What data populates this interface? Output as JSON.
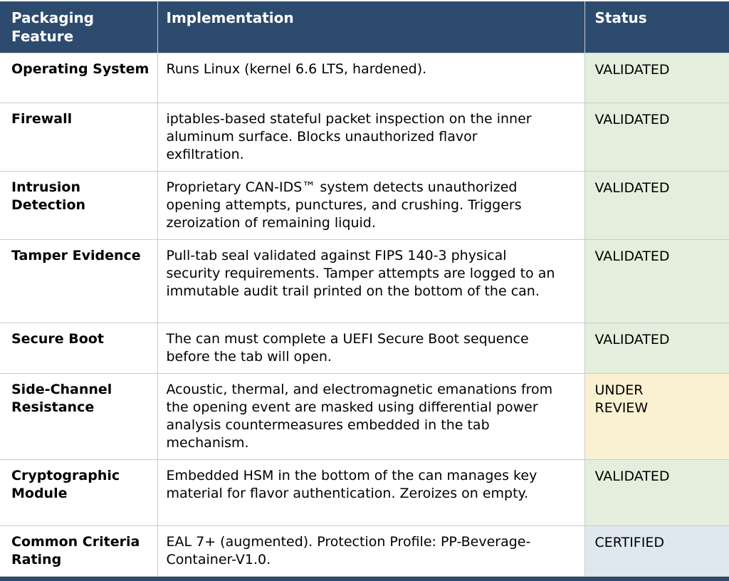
{
  "colors": {
    "header_bg": "#2d4b6f",
    "header_text": "#ffffff",
    "body_text": "#000000",
    "border": "#cbcbcb",
    "validated_bg": "#e3efdc",
    "under_review_bg": "#faf0d2",
    "certified_bg": "#e0e8ef",
    "bottom_bar": "#2d4b6f"
  },
  "table": {
    "columns": [
      "Packaging Feature",
      "Implementation",
      "Status"
    ],
    "rows": [
      {
        "feature": "Operating System",
        "implementation": "Runs Linux (kernel 6.6 LTS, hardened).",
        "status": "VALIDATED",
        "status_key": "validated"
      },
      {
        "feature": "Firewall",
        "implementation": "iptables-based stateful packet inspection on the inner aluminum surface. Blocks unauthorized flavor exfiltration.",
        "status": "VALIDATED",
        "status_key": "validated"
      },
      {
        "feature": "Intrusion Detection",
        "implementation": "Proprietary CAN-IDS™ system detects unauthorized opening attempts, punctures, and crushing. Triggers zeroization of remaining liquid.",
        "status": "VALIDATED",
        "status_key": "validated"
      },
      {
        "feature": "Tamper Evidence",
        "implementation": "Pull-tab seal validated against FIPS 140-3 physical security requirements. Tamper attempts are logged to an immutable audit trail printed on the bottom of the can.",
        "status": "VALIDATED",
        "status_key": "validated"
      },
      {
        "feature": "Secure Boot",
        "implementation": "The can must complete a UEFI Secure Boot sequence before the tab will open.",
        "status": "VALIDATED",
        "status_key": "validated"
      },
      {
        "feature": "Side-Channel Resistance",
        "implementation": "Acoustic, thermal, and electromagnetic emanations from the opening event are masked using differential power analysis countermeasures embedded in the tab mechanism.",
        "status": "UNDER REVIEW",
        "status_key": "under_review"
      },
      {
        "feature": "Cryptographic Module",
        "implementation": "Embedded HSM in the bottom of the can manages key material for flavor authentication. Zeroizes on empty.",
        "status": "VALIDATED",
        "status_key": "validated"
      },
      {
        "feature": "Common Criteria Rating",
        "implementation": "EAL 7+ (augmented). Protection Profile: PP-Beverage-Container-V1.0.",
        "status": "CERTIFIED",
        "status_key": "certified"
      }
    ]
  }
}
